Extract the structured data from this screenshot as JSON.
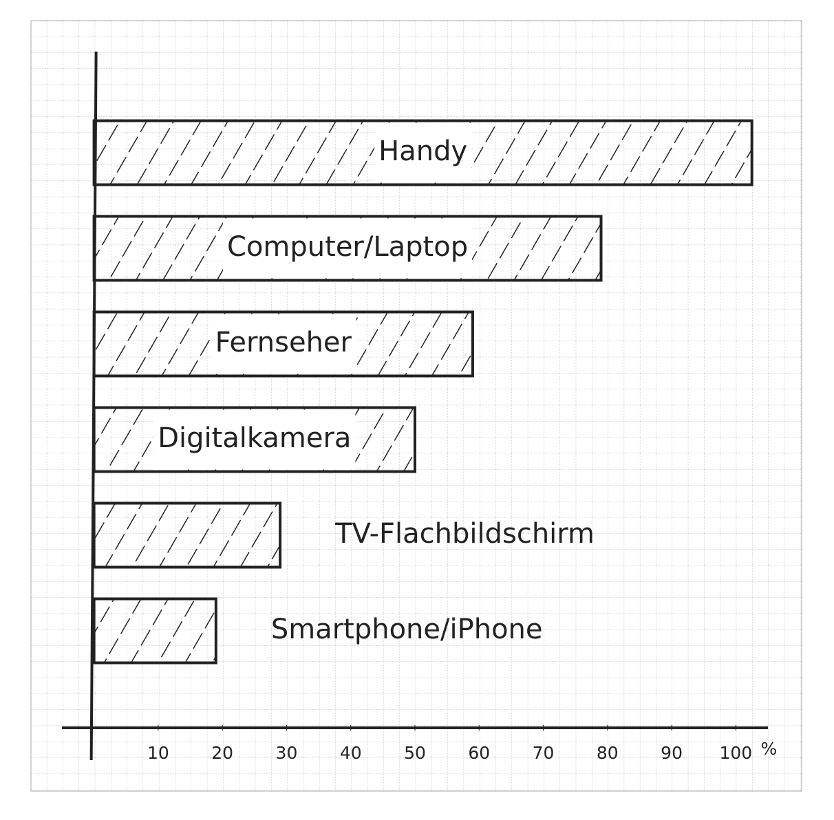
{
  "chart_data": {
    "type": "barh",
    "categories": [
      "Handy",
      "Computer/Laptop",
      "Fernseher",
      "Digitalkamera",
      "TV-Flachbildschirm",
      "Smartphone/iPhone"
    ],
    "values": [
      102.5,
      79,
      59,
      50,
      29,
      19
    ],
    "color": "#222222",
    "xlim": [
      -5,
      105
    ],
    "xticks": [
      10,
      20,
      30,
      40,
      50,
      60,
      70,
      80,
      90,
      100
    ],
    "x_label": "%"
  }
}
